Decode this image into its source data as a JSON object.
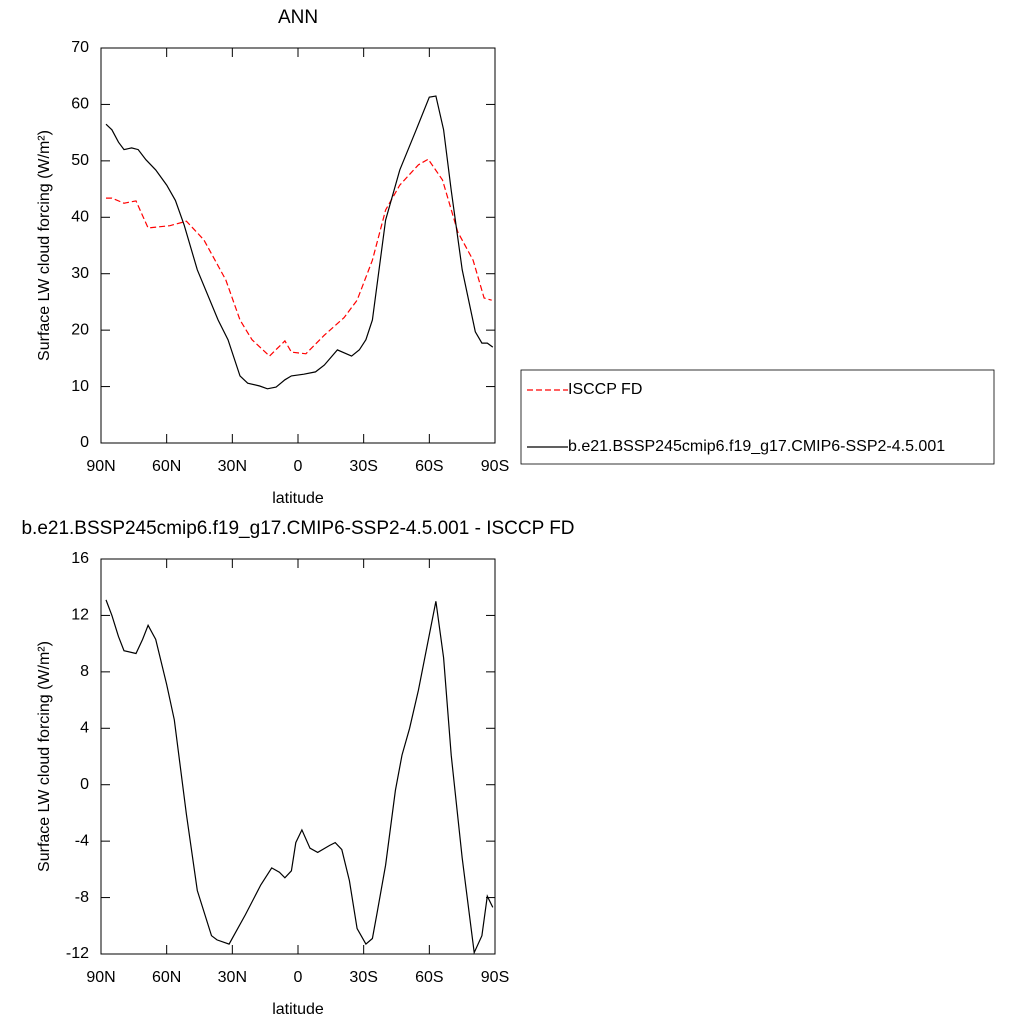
{
  "chart_data": [
    {
      "type": "line",
      "title": "ANN",
      "xlabel": "latitude",
      "ylabel": "Surface LW cloud forcing (W/m²)",
      "xlim": [
        90,
        -90
      ],
      "xticks": [
        {
          "value": 90,
          "label": "90N"
        },
        {
          "value": 60,
          "label": "60N"
        },
        {
          "value": 30,
          "label": "30N"
        },
        0,
        {
          "value": -30,
          "label": "30S"
        },
        {
          "value": -60,
          "label": "60S"
        },
        {
          "value": -90,
          "label": "90S"
        }
      ],
      "ylim": [
        0,
        70
      ],
      "yticks": [
        0,
        10,
        20,
        30,
        40,
        50,
        60,
        70
      ],
      "legend": "outside right",
      "series": [
        {
          "name": "ISCCP FD",
          "color": "#ff0000",
          "style": "dashed",
          "x": [
            87.7,
            85,
            79.5,
            74,
            68.5,
            58.5,
            51,
            43,
            33,
            26.5,
            21,
            13,
            6,
            3,
            -3.6,
            -12,
            -21,
            -27,
            -34,
            -40,
            -46.5,
            -55,
            -59.5,
            -66,
            -73,
            -80,
            -85,
            -88.5
          ],
          "values": [
            43.4,
            43.4,
            42.5,
            42.9,
            38.1,
            38.5,
            39.3,
            36,
            28.9,
            21.8,
            18.3,
            15.4,
            18.1,
            16.1,
            15.8,
            19.1,
            22.2,
            25.3,
            32.4,
            41.3,
            45.7,
            49.3,
            50.3,
            46.6,
            37.4,
            32.4,
            25.7,
            25.3
          ]
        },
        {
          "name": "b.e21.BSSP245cmip6.f19_g17.CMIP6-SSP2-4.5.001",
          "color": "#000000",
          "style": "solid",
          "x": [
            87.7,
            85,
            82,
            79.5,
            76,
            73,
            69.5,
            65,
            60,
            56,
            52,
            46,
            36.5,
            32,
            26.5,
            23,
            17.5,
            14,
            10,
            6,
            3,
            -2.7,
            -8,
            -12,
            -18,
            -24.5,
            -28,
            -31,
            -34,
            -40,
            -46.5,
            -54,
            -60,
            -63,
            -66.5,
            -70,
            -75,
            -81,
            -84,
            -86.5,
            -89
          ],
          "values": [
            56.5,
            55.5,
            53.3,
            52,
            52.3,
            52,
            50.2,
            48.4,
            45.7,
            43,
            38.6,
            30.7,
            21.8,
            18.3,
            11.9,
            10.6,
            10.1,
            9.6,
            9.9,
            11.2,
            11.9,
            12.2,
            12.6,
            13.8,
            16.5,
            15.4,
            16.5,
            18.3,
            21.8,
            39.5,
            48.4,
            55.5,
            61.3,
            61.5,
            55.5,
            44.8,
            30.7,
            19.7,
            17.7,
            17.7,
            17
          ]
        }
      ]
    },
    {
      "type": "line",
      "title": "b.e21.BSSP245cmip6.f19_g17.CMIP6-SSP2-4.5.001 - ISCCP FD",
      "xlabel": "latitude",
      "ylabel": "Surface LW cloud forcing (W/m²)",
      "xlim": [
        90,
        -90
      ],
      "xticks": [
        {
          "value": 90,
          "label": "90N"
        },
        {
          "value": 60,
          "label": "60N"
        },
        {
          "value": 30,
          "label": "30N"
        },
        0,
        {
          "value": -30,
          "label": "30S"
        },
        {
          "value": -60,
          "label": "60S"
        },
        {
          "value": -90,
          "label": "90S"
        }
      ],
      "ylim": [
        -12,
        16
      ],
      "yticks": [
        -12,
        -8,
        -4,
        0,
        4,
        8,
        12,
        16
      ],
      "series": [
        {
          "color": "#000000",
          "style": "solid",
          "x": [
            87.7,
            85,
            82,
            79.5,
            74,
            71,
            68.5,
            65,
            60,
            56.5,
            51,
            46,
            39.5,
            37,
            31.5,
            24,
            17,
            12,
            8.5,
            6,
            3,
            1,
            -1.8,
            -5.5,
            -9,
            -14.5,
            -17,
            -20,
            -23.5,
            -27,
            -31,
            -34,
            -36,
            -40,
            -44.5,
            -47.5,
            -51,
            -55,
            -63,
            -66.5,
            -70,
            -75,
            -80.5,
            -84,
            -86.5,
            -89
          ],
          "values": [
            13.1,
            12,
            10.5,
            9.5,
            9.3,
            10.3,
            11.3,
            10.3,
            7.1,
            4.6,
            -2.1,
            -7.5,
            -10.7,
            -11,
            -11.3,
            -9.2,
            -7.1,
            -5.9,
            -6.2,
            -6.6,
            -6.1,
            -4.1,
            -3.2,
            -4.5,
            -4.8,
            -4.3,
            -4.1,
            -4.6,
            -6.8,
            -10.2,
            -11.3,
            -10.9,
            -9.2,
            -5.7,
            -0.4,
            2.1,
            4,
            6.7,
            13,
            9,
            2.1,
            -5.2,
            -11.9,
            -10.7,
            -7.9,
            -8.7
          ]
        }
      ]
    }
  ]
}
